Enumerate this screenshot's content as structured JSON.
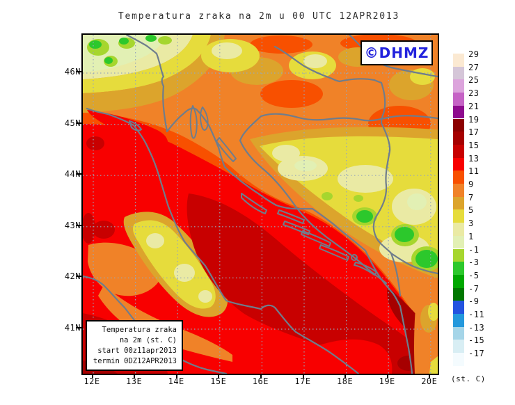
{
  "title": "Temperatura zraka na 2m u 00 UTC 12APR2013",
  "branding": {
    "label": "©DHMZ"
  },
  "map": {
    "info_box": {
      "lines": [
        "Temperatura zraka",
        "na 2m (st. C)",
        "start 00z11apr2013",
        "termin 0DZ12APR2013"
      ]
    },
    "x_axis": {
      "labels": [
        "12E",
        "13E",
        "14E",
        "15E",
        "16E",
        "17E",
        "18E",
        "19E",
        "20E"
      ]
    },
    "y_axis": {
      "labels": [
        "46N",
        "45N",
        "44N",
        "43N",
        "42N",
        "41N"
      ]
    }
  },
  "legend": {
    "unit": "(st. C)",
    "entries": [
      {
        "label": "29",
        "color": "#FBE9D2"
      },
      {
        "label": "27",
        "color": "#D5C6D8"
      },
      {
        "label": "25",
        "color": "#DCA4DC"
      },
      {
        "label": "23",
        "color": "#C663C6"
      },
      {
        "label": "21",
        "color": "#8E0A8E"
      },
      {
        "label": "19",
        "color": "#8C0000"
      },
      {
        "label": "17",
        "color": "#A60000"
      },
      {
        "label": "15",
        "color": "#C80000"
      },
      {
        "label": "13",
        "color": "#F80000"
      },
      {
        "label": "11",
        "color": "#F85000"
      },
      {
        "label": "9",
        "color": "#F08228"
      },
      {
        "label": "7",
        "color": "#DCA42C"
      },
      {
        "label": "5",
        "color": "#E6DC3C"
      },
      {
        "label": "3",
        "color": "#EAEAA4"
      },
      {
        "label": "1",
        "color": "#E2F0B4"
      },
      {
        "label": "-1",
        "color": "#A6D62E"
      },
      {
        "label": "-3",
        "color": "#2CC82C"
      },
      {
        "label": "-5",
        "color": "#00A800"
      },
      {
        "label": "-7",
        "color": "#007800"
      },
      {
        "label": "-9",
        "color": "#2353E0"
      },
      {
        "label": "-11",
        "color": "#2398DC"
      },
      {
        "label": "-13",
        "color": "#A5D5E8"
      },
      {
        "label": "-15",
        "color": "#D8EEF4"
      },
      {
        "label": "-17",
        "color": "#F4FBFE"
      }
    ]
  },
  "colors": {
    "coastline": "#6F7D8C",
    "grid": "#97A7BA",
    "frame": "#000000",
    "dhmz_blue": "#2222DD",
    "title_text": "#2E2E2E"
  }
}
